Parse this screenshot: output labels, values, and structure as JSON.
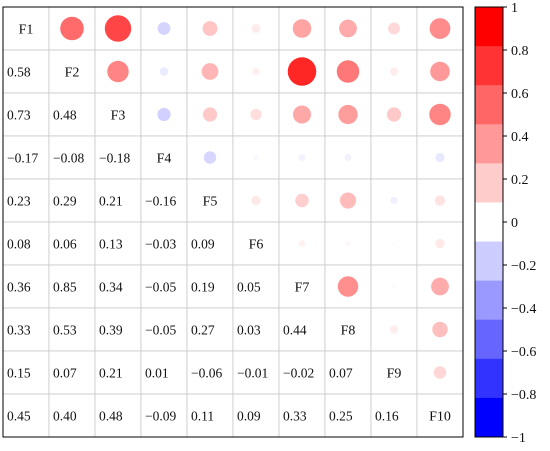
{
  "chart_data": {
    "type": "heatmap",
    "title": "",
    "xlabel": "",
    "ylabel": "",
    "variables": [
      "F1",
      "F2",
      "F3",
      "F4",
      "F5",
      "F6",
      "F7",
      "F8",
      "F9",
      "F10"
    ],
    "lower_triangle_display": "values",
    "upper_triangle_display": "circles",
    "matrix": [
      [
        1.0,
        0.58,
        0.73,
        -0.17,
        0.23,
        0.08,
        0.36,
        0.33,
        0.15,
        0.45
      ],
      [
        0.58,
        1.0,
        0.48,
        -0.08,
        0.29,
        0.06,
        0.85,
        0.53,
        0.07,
        0.4
      ],
      [
        0.73,
        0.48,
        1.0,
        -0.18,
        0.21,
        0.13,
        0.34,
        0.39,
        0.21,
        0.48
      ],
      [
        -0.17,
        -0.08,
        -0.18,
        1.0,
        -0.16,
        -0.03,
        -0.05,
        -0.05,
        0.01,
        -0.09
      ],
      [
        0.23,
        0.29,
        0.21,
        -0.16,
        1.0,
        0.09,
        0.19,
        0.27,
        -0.06,
        0.11
      ],
      [
        0.08,
        0.06,
        0.13,
        -0.03,
        0.09,
        1.0,
        0.05,
        0.03,
        -0.01,
        0.09
      ],
      [
        0.36,
        0.85,
        0.34,
        -0.05,
        0.19,
        0.05,
        1.0,
        0.44,
        -0.02,
        0.33
      ],
      [
        0.33,
        0.53,
        0.39,
        -0.05,
        0.27,
        0.03,
        0.44,
        1.0,
        0.07,
        0.25
      ],
      [
        0.15,
        0.07,
        0.21,
        0.01,
        -0.06,
        -0.01,
        -0.02,
        0.07,
        1.0,
        0.16
      ],
      [
        0.45,
        0.4,
        0.48,
        -0.09,
        0.11,
        0.09,
        0.33,
        0.25,
        0.16,
        1.0
      ]
    ],
    "value_labels": [
      [
        "",
        "",
        "",
        "",
        "",
        "",
        "",
        "",
        "",
        ""
      ],
      [
        "0.58",
        "",
        "",
        "",
        "",
        "",
        "",
        "",
        "",
        ""
      ],
      [
        "0.73",
        "0.48",
        "",
        "",
        "",
        "",
        "",
        "",
        "",
        ""
      ],
      [
        "−0.17",
        "−0.08",
        "−0.18",
        "",
        "",
        "",
        "",
        "",
        "",
        ""
      ],
      [
        "0.23",
        "0.29",
        "0.21",
        "−0.16",
        "",
        "",
        "",
        "",
        "",
        ""
      ],
      [
        "0.08",
        "0.06",
        "0.13",
        "−0.03",
        "0.09",
        "",
        "",
        "",
        "",
        ""
      ],
      [
        "0.36",
        "0.85",
        "0.34",
        "−0.05",
        "0.19",
        "0.05",
        "",
        "",
        "",
        ""
      ],
      [
        "0.33",
        "0.53",
        "0.39",
        "−0.05",
        "0.27",
        "0.03",
        "0.44",
        "",
        "",
        ""
      ],
      [
        "0.15",
        "0.07",
        "0.21",
        "0.01",
        "−0.06",
        "−0.01",
        "−0.02",
        "0.07",
        "",
        ""
      ],
      [
        "0.45",
        "0.40",
        "0.48",
        "−0.09",
        "0.11",
        "0.09",
        "0.33",
        "0.25",
        "0.16",
        ""
      ]
    ],
    "colorbar": {
      "range": [
        -1,
        1
      ],
      "ticks": [
        "1",
        "0.8",
        "0.6",
        "0.4",
        "0.2",
        "0",
        "−0.2",
        "−0.4",
        "−0.6",
        "−0.8",
        "−1"
      ],
      "levels_top_to_bottom": [
        "#ff0000",
        "#ff3333",
        "#ff6666",
        "#ff9999",
        "#ffcccc",
        "#ffffff",
        "#ccccff",
        "#9999ff",
        "#6666ff",
        "#3333ff",
        "#0000ff"
      ],
      "placement": "right"
    },
    "grid": true,
    "colors": {
      "positive": "#ff0000",
      "negative": "#0000ff",
      "neutral": "#ffffff",
      "gridline": "#c8c8c8",
      "frame": "#000000"
    }
  }
}
